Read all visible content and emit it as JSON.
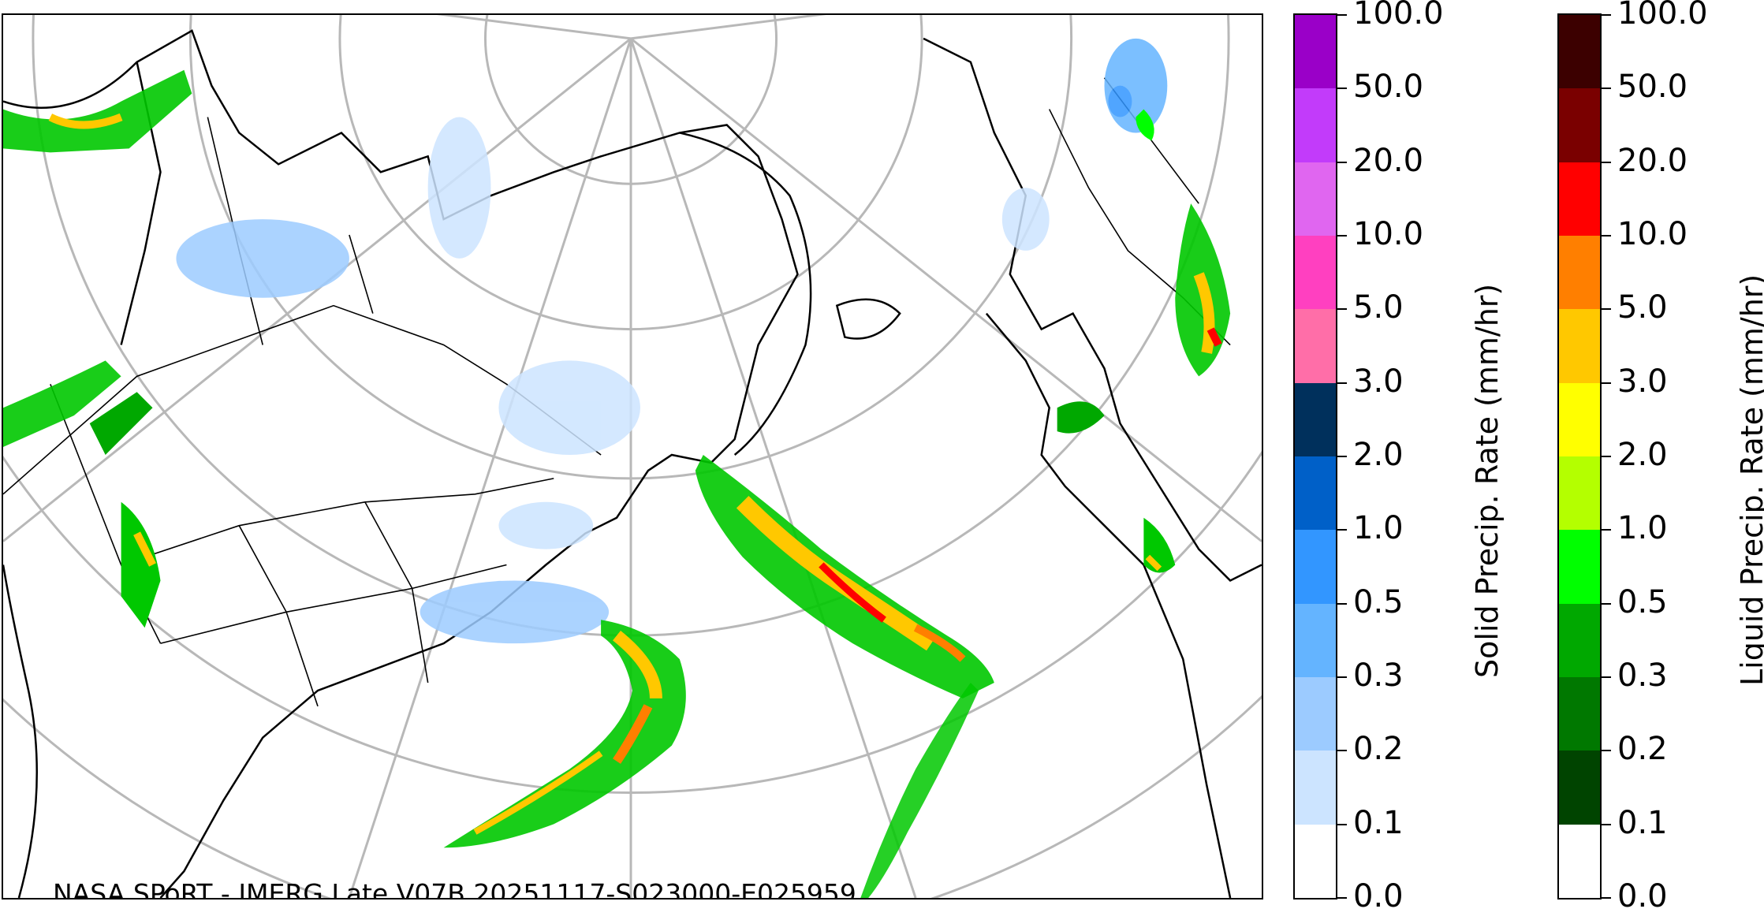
{
  "caption": "NASA SPoRT - IMERG Late V07B 20251117-S023000-E025959",
  "solid_colorbar": {
    "title": "Solid Precip. Rate (mm/hr)",
    "ticks": [
      "100.0",
      "50.0",
      "20.0",
      "10.0",
      "5.0",
      "3.0",
      "2.0",
      "1.0",
      "0.5",
      "0.3",
      "0.2",
      "0.1",
      "0.0"
    ],
    "colors": [
      "#9a00c8",
      "#c23bfa",
      "#e066f0",
      "#ff40c0",
      "#ff6ea8",
      "#00305c",
      "#0060c8",
      "#3296ff",
      "#64b4ff",
      "#9ccbff",
      "#cce4ff",
      "#ffffff"
    ]
  },
  "liquid_colorbar": {
    "title": "Liquid Precip. Rate (mm/hr)",
    "ticks": [
      "100.0",
      "50.0",
      "20.0",
      "10.0",
      "5.0",
      "3.0",
      "2.0",
      "1.0",
      "0.5",
      "0.3",
      "0.2",
      "0.1",
      "0.0"
    ],
    "colors": [
      "#3c0000",
      "#7a0000",
      "#ff0000",
      "#ff7f00",
      "#ffc800",
      "#ffff00",
      "#b4ff00",
      "#00ff00",
      "#00a800",
      "#007800",
      "#004400",
      "#ffffff"
    ]
  }
}
